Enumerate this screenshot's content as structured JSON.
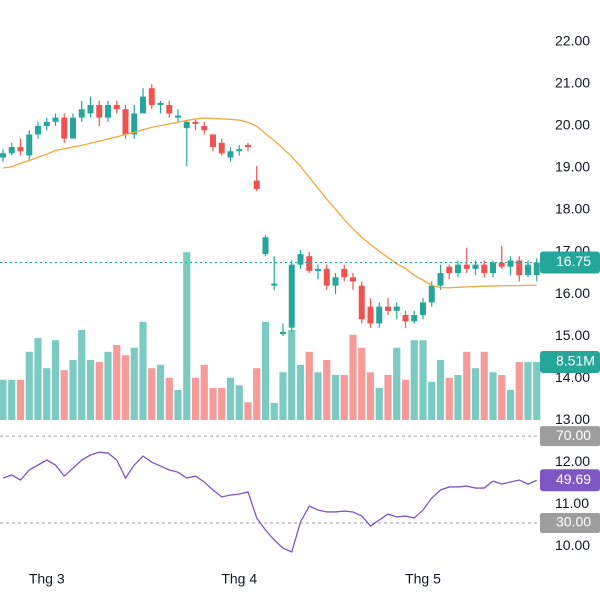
{
  "chart_data": {
    "type": "candlestick",
    "categories": [
      null,
      null,
      null,
      null,
      null,
      "Thg 3",
      null,
      null,
      null,
      null,
      null,
      null,
      null,
      null,
      null,
      null,
      null,
      null,
      null,
      null,
      null,
      null,
      null,
      null,
      null,
      null,
      null,
      "Thg 4",
      null,
      null,
      null,
      null,
      null,
      null,
      null,
      null,
      null,
      null,
      null,
      null,
      null,
      null,
      null,
      null,
      null,
      null,
      null,
      null,
      "Thg 5",
      null,
      null,
      null,
      null,
      null,
      null,
      null,
      null,
      null,
      null,
      null,
      null,
      null
    ],
    "open": [
      19.25,
      19.35,
      19.5,
      19.3,
      19.8,
      20.0,
      20.1,
      20.2,
      19.7,
      20.2,
      20.3,
      20.5,
      20.2,
      20.5,
      20.4,
      19.8,
      20.3,
      20.9,
      20.5,
      20.5,
      20.2,
      19.95,
      20.1,
      20.0,
      19.8,
      19.6,
      19.25,
      19.4,
      19.55,
      18.7,
      16.95,
      16.2,
      15.05,
      15.2,
      16.7,
      16.9,
      16.55,
      16.6,
      16.2,
      16.6,
      16.4,
      16.2,
      15.7,
      15.3,
      15.7,
      15.6,
      15.5,
      15.35,
      15.5,
      15.8,
      16.2,
      16.65,
      16.5,
      16.7,
      16.6,
      16.7,
      16.5,
      16.75,
      16.65,
      16.8,
      16.45,
      16.45
    ],
    "high": [
      19.45,
      19.6,
      19.7,
      19.9,
      20.1,
      20.2,
      20.3,
      20.3,
      20.3,
      20.6,
      20.7,
      20.6,
      20.6,
      20.6,
      20.5,
      20.5,
      20.9,
      21.0,
      20.6,
      20.6,
      20.4,
      20.15,
      20.15,
      20.1,
      19.8,
      19.7,
      19.5,
      19.55,
      19.6,
      19.05,
      17.4,
      16.9,
      15.3,
      16.8,
      17.05,
      17.0,
      16.7,
      16.7,
      16.5,
      16.7,
      16.5,
      16.3,
      15.9,
      15.8,
      15.9,
      15.8,
      15.6,
      15.6,
      15.9,
      16.3,
      16.7,
      16.7,
      16.8,
      17.1,
      16.8,
      16.8,
      16.8,
      17.15,
      16.9,
      16.9,
      16.8,
      16.85
    ],
    "low": [
      19.15,
      19.3,
      19.3,
      19.2,
      19.7,
      19.9,
      20.0,
      19.6,
      19.7,
      20.1,
      20.2,
      20.0,
      20.1,
      20.3,
      19.7,
      19.7,
      20.3,
      20.4,
      20.3,
      20.2,
      20.1,
      19.05,
      19.9,
      19.8,
      19.4,
      19.3,
      19.15,
      19.3,
      19.4,
      18.45,
      16.9,
      16.1,
      15.0,
      15.1,
      16.6,
      16.5,
      16.35,
      16.1,
      16.0,
      16.3,
      16.1,
      15.3,
      15.2,
      15.2,
      15.5,
      15.4,
      15.2,
      15.3,
      15.4,
      15.7,
      16.1,
      16.35,
      16.4,
      16.5,
      16.45,
      16.4,
      16.4,
      16.6,
      16.45,
      16.3,
      16.4,
      16.3
    ],
    "close": [
      19.35,
      19.5,
      19.4,
      19.8,
      20.0,
      20.1,
      20.2,
      19.7,
      20.2,
      20.4,
      20.5,
      20.2,
      20.5,
      20.4,
      19.8,
      20.3,
      20.7,
      20.5,
      20.55,
      20.3,
      20.25,
      20.1,
      20.05,
      19.9,
      19.5,
      19.35,
      19.4,
      19.45,
      19.5,
      18.5,
      17.35,
      16.25,
      15.1,
      16.7,
      16.95,
      16.55,
      16.6,
      16.2,
      16.4,
      16.4,
      16.3,
      15.4,
      15.3,
      15.7,
      15.6,
      15.7,
      15.35,
      15.5,
      15.8,
      16.2,
      16.5,
      16.5,
      16.7,
      16.6,
      16.7,
      16.5,
      16.75,
      16.65,
      16.8,
      16.45,
      16.7,
      16.75
    ],
    "volume": [
      5.9,
      5.9,
      5.9,
      10.0,
      12.0,
      7.6,
      11.7,
      7.3,
      8.8,
      13.2,
      8.8,
      8.5,
      10.0,
      11.0,
      9.5,
      10.6,
      14.4,
      7.6,
      8.1,
      6.2,
      4.4,
      24.6,
      6.2,
      8.1,
      4.7,
      4.7,
      6.2,
      5.1,
      2.6,
      7.6,
      14.4,
      2.5,
      7.0,
      13.2,
      8.1,
      10.0,
      7.0,
      8.8,
      6.6,
      6.6,
      12.5,
      10.6,
      7.0,
      4.7,
      6.6,
      10.6,
      5.9,
      11.7,
      11.7,
      5.6,
      8.8,
      6.2,
      6.6,
      10.0,
      7.6,
      10.0,
      7.0,
      6.6,
      4.4,
      8.5,
      8.51,
      8.51
    ],
    "volume_label": "8.51M",
    "ma": [
      19.0,
      19.03,
      19.11,
      19.18,
      19.26,
      19.33,
      19.42,
      19.46,
      19.5,
      19.54,
      19.59,
      19.64,
      19.69,
      19.74,
      19.8,
      19.85,
      19.91,
      19.97,
      20.01,
      20.05,
      20.09,
      20.13,
      20.17,
      20.19,
      20.18,
      20.17,
      20.16,
      20.14,
      20.09,
      19.99,
      19.82,
      19.65,
      19.47,
      19.27,
      19.04,
      18.78,
      18.52,
      18.26,
      18.02,
      17.77,
      17.55,
      17.35,
      17.18,
      17.02,
      16.87,
      16.72,
      16.61,
      16.45,
      16.33,
      16.21,
      16.15,
      16.15,
      16.16,
      16.17,
      16.18,
      16.19,
      16.19,
      16.2,
      16.2,
      16.2,
      16.21,
      16.21
    ],
    "rsi": [
      50.7,
      52.1,
      49.8,
      54.4,
      56.7,
      59.0,
      56.7,
      51.6,
      55.3,
      59.0,
      61.3,
      62.6,
      62.2,
      59.0,
      50.7,
      56.7,
      60.8,
      58.0,
      56.2,
      54.4,
      53.4,
      50.7,
      51.6,
      48.9,
      45.2,
      42.0,
      42.9,
      43.3,
      44.3,
      32.3,
      26.8,
      22.2,
      18.5,
      16.7,
      30.5,
      37.8,
      36.0,
      35.1,
      35.1,
      35.5,
      35.1,
      33.2,
      28.6,
      31.4,
      34.1,
      32.8,
      33.2,
      32.3,
      36.0,
      41.5,
      45.2,
      46.6,
      46.6,
      47.0,
      46.1,
      46.1,
      49.3,
      47.9,
      48.9,
      49.8,
      47.9,
      49.69
    ],
    "rsi_levels": [
      {
        "value": 70,
        "label": "70.00"
      },
      {
        "value": 30,
        "label": "30.00"
      }
    ],
    "ylim": [
      9.55,
      23.0
    ],
    "yticks": [
      {
        "value": 22,
        "label": "22.00"
      },
      {
        "value": 21,
        "label": "21.00"
      },
      {
        "value": 20,
        "label": "20.00"
      },
      {
        "value": 19,
        "label": "19.00"
      },
      {
        "value": 18,
        "label": "18.00"
      },
      {
        "value": 17,
        "label": "17.00"
      },
      {
        "value": 16,
        "label": "16.00"
      },
      {
        "value": 15,
        "label": "15.00"
      },
      {
        "value": 14,
        "label": "14.00"
      },
      {
        "value": 13,
        "label": "13.00"
      },
      {
        "value": 12,
        "label": "12.00"
      },
      {
        "value": 11,
        "label": "11.00"
      },
      {
        "value": 10,
        "label": "10.00"
      }
    ],
    "volume_lim": [
      0,
      25
    ],
    "rsi_lim": [
      13,
      77.4
    ],
    "colors": {
      "up": "#26a69a",
      "down": "#ef5350",
      "volume_up": "#7ccbc2",
      "volume_down": "#f59c9a",
      "ma": "#f5a63c",
      "rsi": "#7e57c2",
      "level": "#9e9e9e"
    }
  }
}
